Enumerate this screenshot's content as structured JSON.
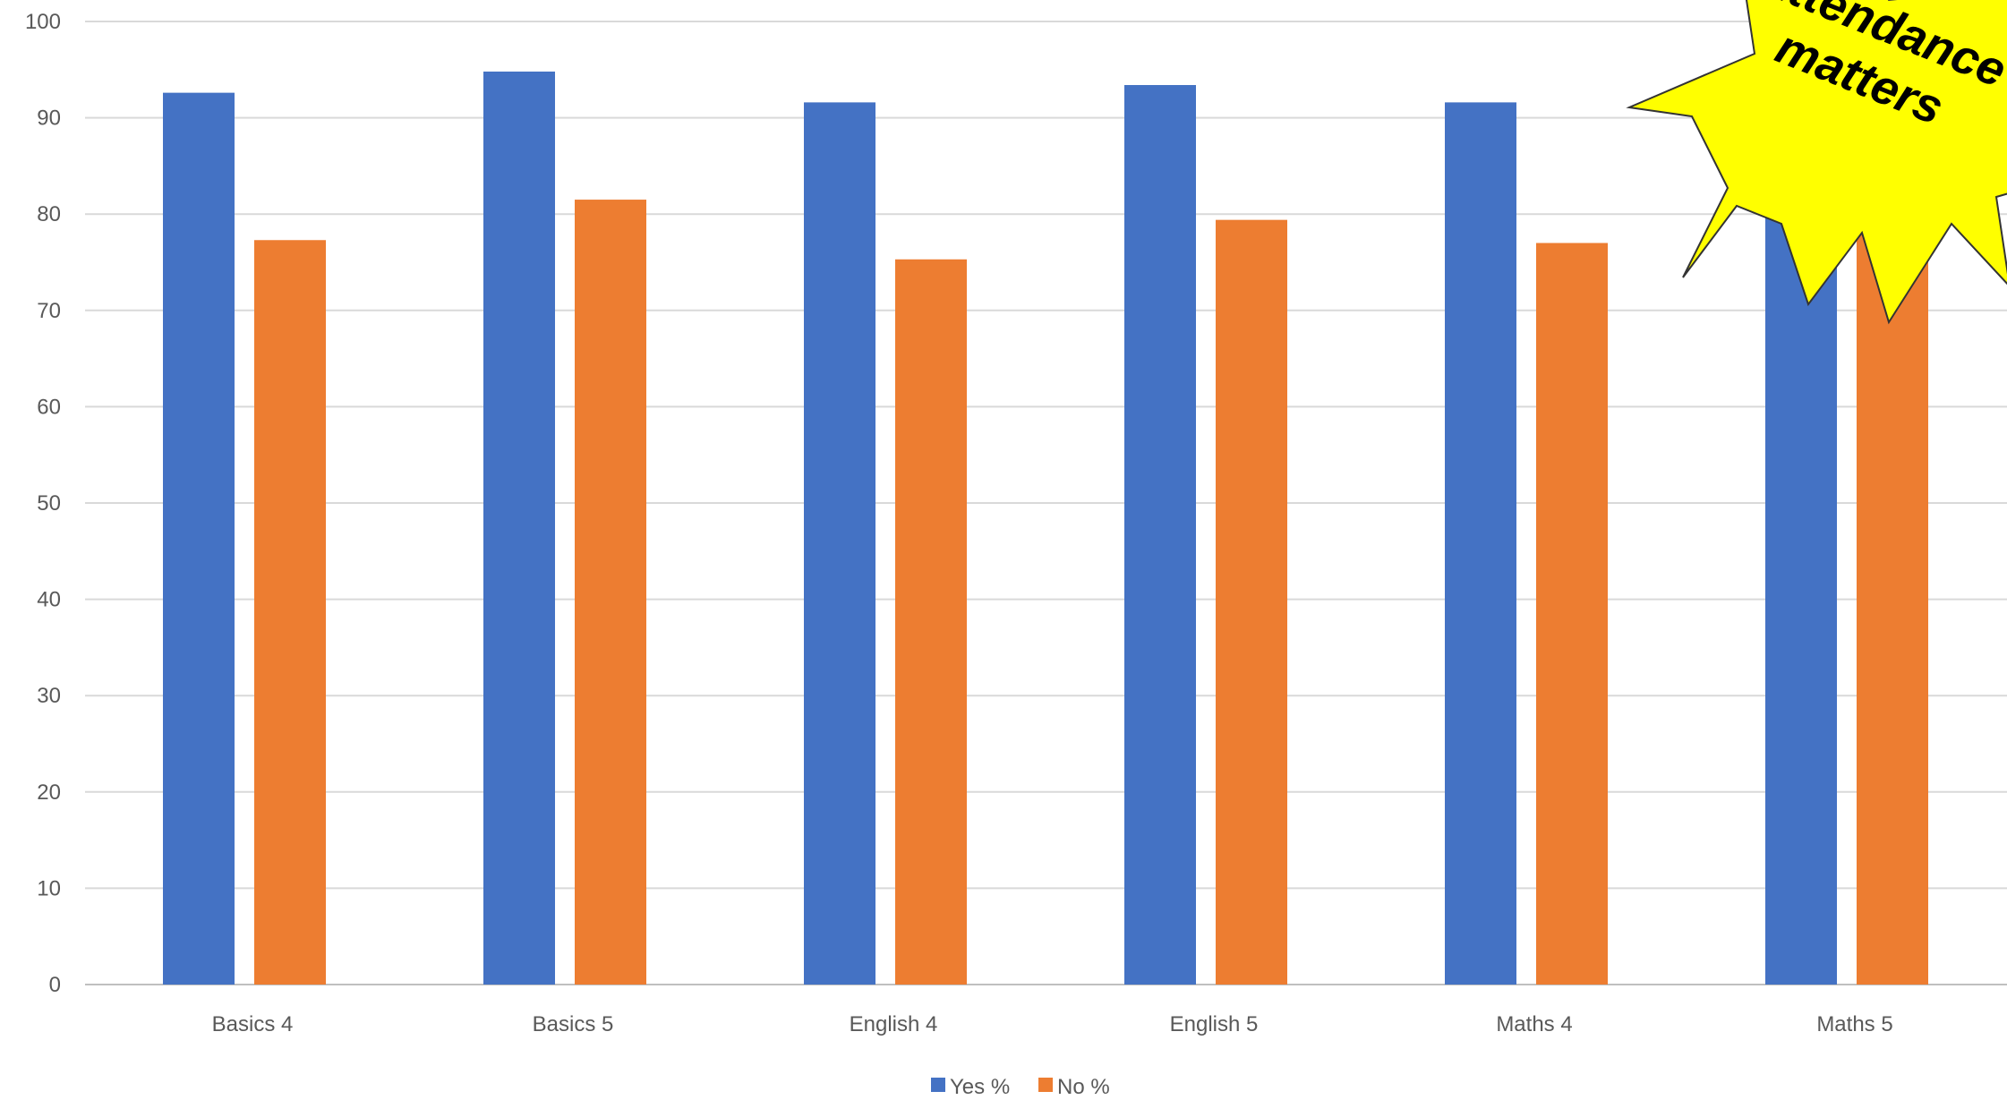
{
  "chart_data": {
    "type": "bar",
    "categories": [
      "Basics 4",
      "Basics 5",
      "English 4",
      "English 5",
      "Maths 4",
      "Maths 5"
    ],
    "series": [
      {
        "name": "Yes %",
        "color": "#4472C4",
        "values": [
          92.6,
          94.8,
          91.6,
          93.4,
          91.6,
          92.5
        ]
      },
      {
        "name": "No %",
        "color": "#ED7D31",
        "values": [
          77.3,
          81.5,
          75.3,
          79.4,
          77.0,
          80.9
        ]
      }
    ],
    "yticks": [
      0,
      10,
      20,
      30,
      40,
      50,
      60,
      70,
      80,
      90,
      100
    ],
    "ylim": [
      0,
      100
    ],
    "grid": true,
    "legend_position": "bottom",
    "title": "",
    "xlabel": "",
    "ylabel": ""
  },
  "callout": {
    "line1": "Attendance",
    "line2": "matters",
    "fill": "#FFFF00",
    "stroke": "#333333"
  }
}
